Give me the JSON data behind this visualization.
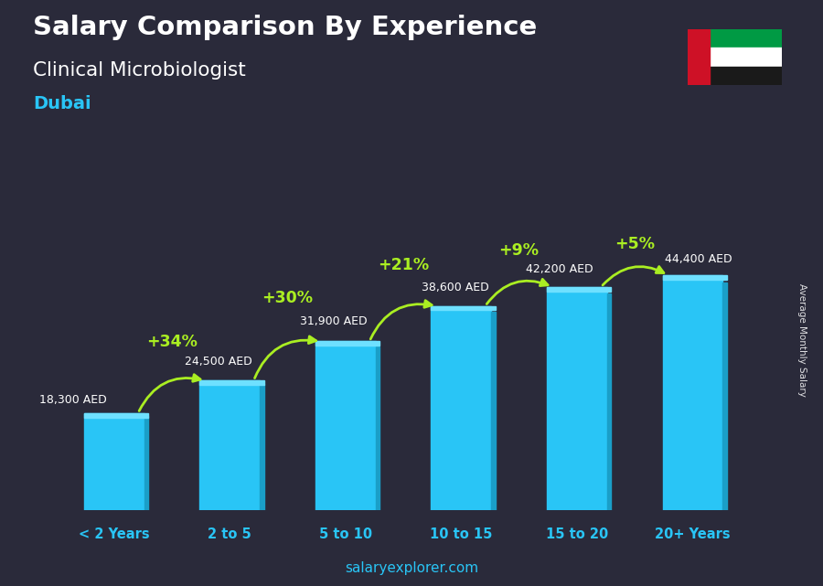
{
  "title_line1": "Salary Comparison By Experience",
  "title_line2": "Clinical Microbiologist",
  "city": "Dubai",
  "categories": [
    "< 2 Years",
    "2 to 5",
    "5 to 10",
    "10 to 15",
    "15 to 20",
    "20+ Years"
  ],
  "values": [
    18300,
    24500,
    31900,
    38600,
    42200,
    44400
  ],
  "value_labels": [
    "18,300 AED",
    "24,500 AED",
    "31,900 AED",
    "38,600 AED",
    "42,200 AED",
    "44,400 AED"
  ],
  "pct_labels": [
    "+34%",
    "+30%",
    "+21%",
    "+9%",
    "+5%"
  ],
  "bar_color": "#29c5f6",
  "bar_highlight": "#6ee0ff",
  "pct_color": "#aaee22",
  "text_color": "#ffffff",
  "city_color": "#29c5f6",
  "footer_salary_color": "#29c5f6",
  "footer_explorer_color": "#29c5f6",
  "side_label": "Average Monthly Salary",
  "footer_text": "salaryexplorer.com",
  "figsize": [
    9.0,
    6.41
  ],
  "dpi": 100,
  "bg_color": "#2a2a3a"
}
